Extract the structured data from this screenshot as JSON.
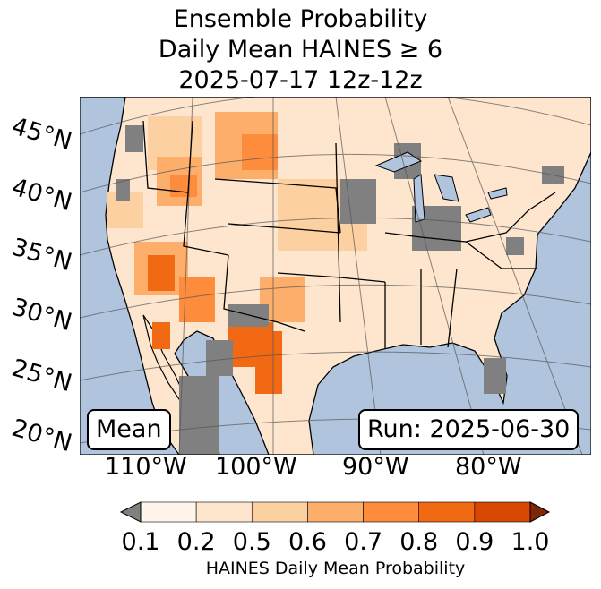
{
  "title": {
    "line1": "Ensemble Probability",
    "line2": "Daily Mean HAINES ≥ 6",
    "line3": "2025-07-17 12z-12z"
  },
  "map": {
    "lat_labels": [
      "45°N",
      "40°N",
      "35°N",
      "30°N",
      "25°N",
      "20°N"
    ],
    "lon_labels": [
      "110°W",
      "100°W",
      "90°W",
      "80°W"
    ],
    "ocean_color": "#b0c4de",
    "missing_color": "#808080"
  },
  "annotations": {
    "stat": "Mean",
    "run": "Run: 2025-06-30"
  },
  "colorbar": {
    "ticks": [
      "0.1",
      "0.2",
      "0.5",
      "0.6",
      "0.7",
      "0.8",
      "0.9",
      "1.0"
    ],
    "colors": [
      "#fff5eb",
      "#fee6ce",
      "#fdd0a2",
      "#fdae6b",
      "#fd8d3c",
      "#f16913",
      "#d94801"
    ],
    "under_color": "#808080",
    "over_color": "#7f2704",
    "label": "HAINES Daily Mean Probability"
  }
}
